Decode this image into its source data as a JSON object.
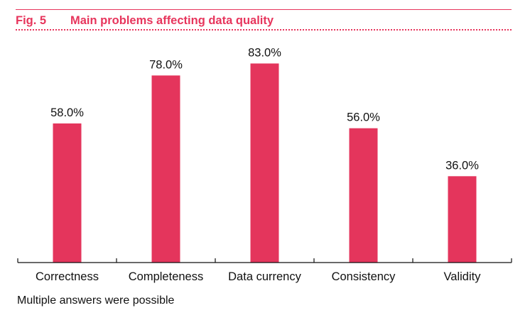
{
  "header": {
    "fig_number": "Fig. 5",
    "title": "Main problems affecting data quality"
  },
  "note": "Multiple answers were possible",
  "colors": {
    "accent": "#e7355c",
    "bar": "#e4355c",
    "text": "#111111"
  },
  "chart_data": {
    "type": "bar",
    "title": "Main problems affecting data quality",
    "categories": [
      "Correctness",
      "Completeness",
      "Data currency",
      "Consistency",
      "Validity"
    ],
    "values": [
      58.0,
      78.0,
      83.0,
      56.0,
      36.0
    ],
    "value_labels": [
      "58.0%",
      "78.0%",
      "83.0%",
      "56.0%",
      "36.0%"
    ],
    "unit": "%",
    "ylim": [
      0,
      100
    ],
    "xlabel": "",
    "ylabel": "",
    "grid": false,
    "legend": "none"
  }
}
